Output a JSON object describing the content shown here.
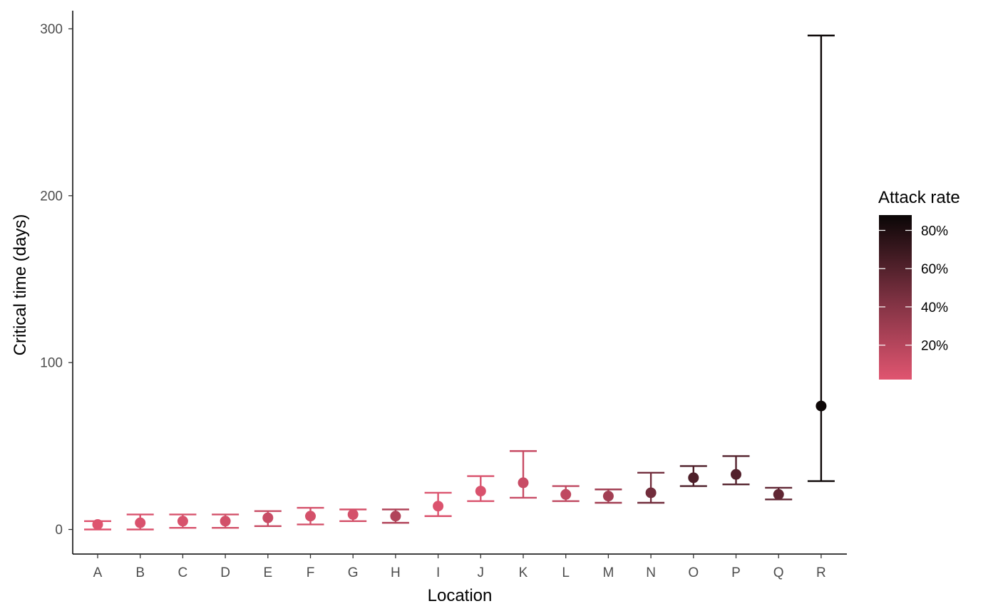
{
  "chart_data": {
    "type": "scatter",
    "xlabel": "Location",
    "ylabel": "Critical time (days)",
    "categories": [
      "A",
      "B",
      "C",
      "D",
      "E",
      "F",
      "G",
      "H",
      "I",
      "J",
      "K",
      "L",
      "M",
      "N",
      "O",
      "P",
      "Q",
      "R"
    ],
    "ylim": [
      -14,
      311
    ],
    "yticks": [
      0,
      100,
      200,
      300
    ],
    "grid": false,
    "series": [
      {
        "points": [
          {
            "x": "A",
            "y": 3,
            "lower": 0,
            "upper": 5,
            "attack_rate": 0.03
          },
          {
            "x": "B",
            "y": 4,
            "lower": 0,
            "upper": 9,
            "attack_rate": 0.05
          },
          {
            "x": "C",
            "y": 5,
            "lower": 1,
            "upper": 9,
            "attack_rate": 0.06
          },
          {
            "x": "D",
            "y": 5,
            "lower": 1,
            "upper": 9,
            "attack_rate": 0.08
          },
          {
            "x": "E",
            "y": 7,
            "lower": 2,
            "upper": 11,
            "attack_rate": 0.12
          },
          {
            "x": "F",
            "y": 8,
            "lower": 3,
            "upper": 13,
            "attack_rate": 0.07
          },
          {
            "x": "G",
            "y": 9,
            "lower": 5,
            "upper": 12,
            "attack_rate": 0.07
          },
          {
            "x": "H",
            "y": 8,
            "lower": 4,
            "upper": 12,
            "attack_rate": 0.22
          },
          {
            "x": "I",
            "y": 14,
            "lower": 8,
            "upper": 22,
            "attack_rate": 0.04
          },
          {
            "x": "J",
            "y": 23,
            "lower": 17,
            "upper": 32,
            "attack_rate": 0.05
          },
          {
            "x": "K",
            "y": 28,
            "lower": 19,
            "upper": 47,
            "attack_rate": 0.12
          },
          {
            "x": "L",
            "y": 21,
            "lower": 17,
            "upper": 26,
            "attack_rate": 0.16
          },
          {
            "x": "M",
            "y": 20,
            "lower": 16,
            "upper": 24,
            "attack_rate": 0.28
          },
          {
            "x": "N",
            "y": 22,
            "lower": 16,
            "upper": 34,
            "attack_rate": 0.48
          },
          {
            "x": "O",
            "y": 31,
            "lower": 26,
            "upper": 38,
            "attack_rate": 0.62
          },
          {
            "x": "P",
            "y": 33,
            "lower": 27,
            "upper": 44,
            "attack_rate": 0.6
          },
          {
            "x": "Q",
            "y": 21,
            "lower": 18,
            "upper": 25,
            "attack_rate": 0.55
          },
          {
            "x": "R",
            "y": 74,
            "lower": 29,
            "upper": 296,
            "attack_rate": 0.87
          }
        ]
      }
    ],
    "legend": {
      "title": "Attack rate",
      "type": "colorbar",
      "position": "right",
      "min": 0.02,
      "max": 0.88,
      "breaks": [
        {
          "value": 0.2,
          "label": "20%"
        },
        {
          "value": 0.4,
          "label": "40%"
        },
        {
          "value": 0.6,
          "label": "60%"
        },
        {
          "value": 0.8,
          "label": "80%"
        }
      ],
      "low_color": "#e05570",
      "high_color": "#0a0606"
    }
  }
}
